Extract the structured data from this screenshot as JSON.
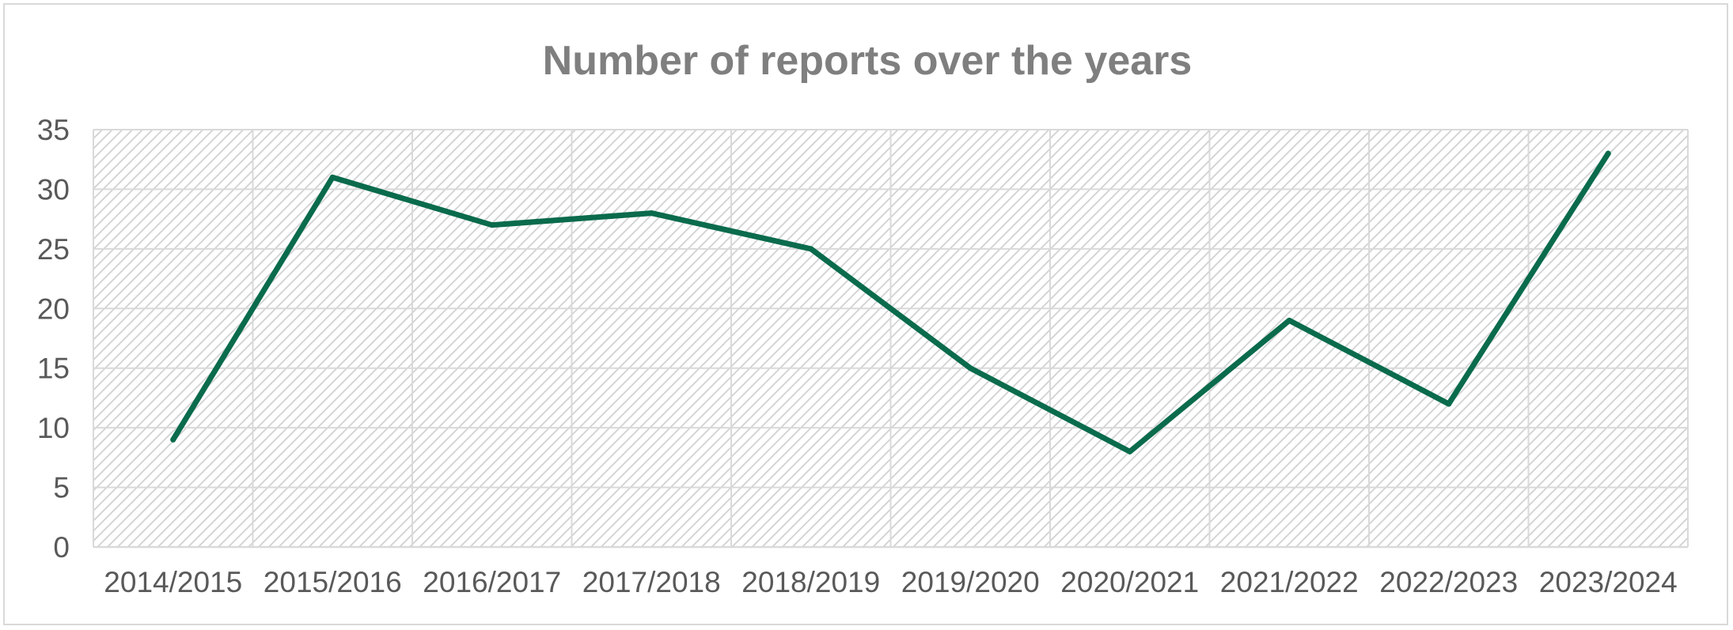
{
  "chart_data": {
    "type": "line",
    "title": "Number of reports over the years",
    "xlabel": "",
    "ylabel": "",
    "categories": [
      "2014/2015",
      "2015/2016",
      "2016/2017",
      "2017/2018",
      "2018/2019",
      "2019/2020",
      "2020/2021",
      "2021/2022",
      "2022/2023",
      "2023/2024"
    ],
    "series": [
      {
        "values": [
          9,
          31,
          27,
          28,
          25,
          15,
          8,
          19,
          12,
          33
        ]
      }
    ],
    "ylim": [
      0,
      35
    ],
    "yticks": [
      0,
      5,
      10,
      15,
      20,
      25,
      30,
      35
    ],
    "grid": true,
    "legend": "none",
    "colors": {
      "line": "#0a6b4c",
      "grid": "#d9d9d9",
      "hatch": "#d0d0d0",
      "title": "#7f7f7f",
      "ticks": "#595959",
      "border": "#d9d9d9"
    }
  }
}
